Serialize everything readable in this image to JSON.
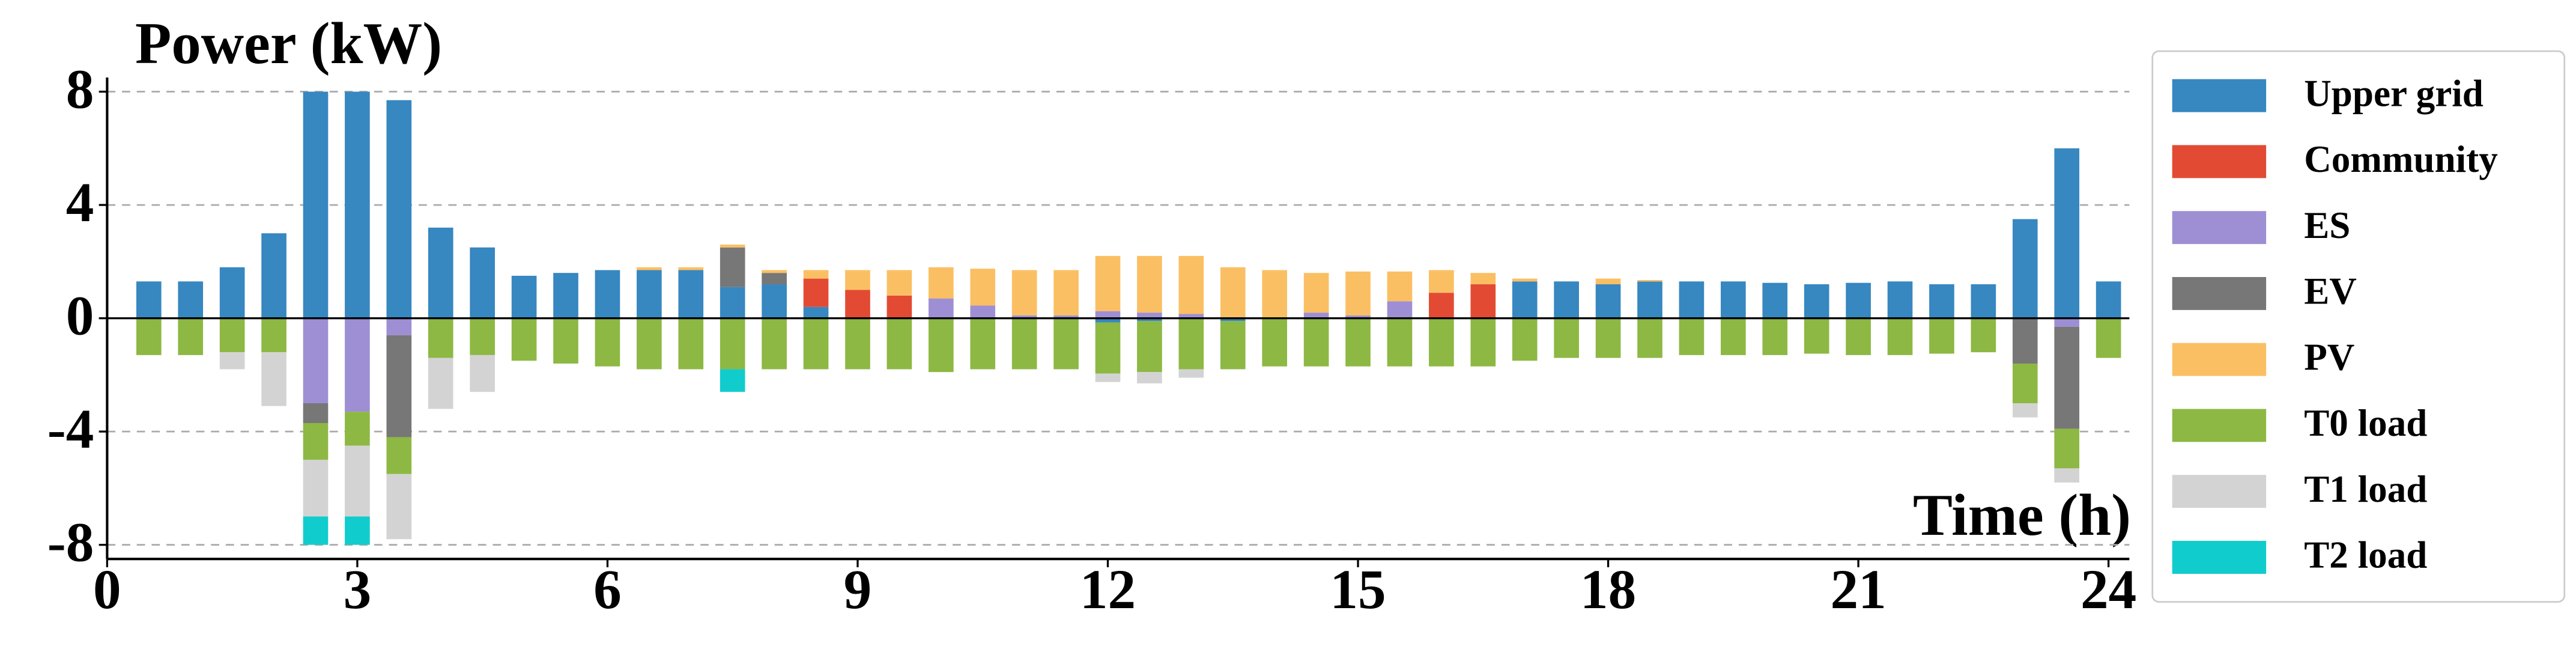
{
  "chart_data": {
    "type": "bar",
    "stacked": true,
    "title": "Power (kW)",
    "xlabel": "Time (h)",
    "x": [
      0.5,
      1.0,
      1.5,
      2.0,
      2.5,
      3.0,
      3.5,
      4.0,
      4.5,
      5.0,
      5.5,
      6.0,
      6.5,
      7.0,
      7.5,
      8.0,
      8.5,
      9.0,
      9.5,
      10.0,
      10.5,
      11.0,
      11.5,
      12.0,
      12.5,
      13.0,
      13.5,
      14.0,
      14.5,
      15.0,
      15.5,
      16.0,
      16.5,
      17.0,
      17.5,
      18.0,
      18.5,
      19.0,
      19.5,
      20.0,
      20.5,
      21.0,
      21.5,
      22.0,
      22.5,
      23.0,
      23.5,
      24.0
    ],
    "xlim": [
      0,
      24.25
    ],
    "xticks": [
      0,
      3,
      6,
      9,
      12,
      15,
      18,
      21,
      24
    ],
    "ylim": [
      -8.5,
      8.5
    ],
    "yticks": [
      8,
      4,
      0,
      -4,
      -8
    ],
    "grid": true,
    "legend": "outside-right",
    "series": [
      {
        "name": "Upper grid",
        "color": "#3787c0",
        "values": [
          1.3,
          1.3,
          1.8,
          3.0,
          8.0,
          8.0,
          7.7,
          3.2,
          2.5,
          1.5,
          1.6,
          1.7,
          1.7,
          1.7,
          1.1,
          1.2,
          0.4,
          0,
          0,
          0,
          0,
          0,
          0,
          -0.15,
          -0.1,
          0,
          -0.1,
          0,
          0,
          0,
          0,
          0,
          0,
          1.3,
          1.3,
          1.2,
          1.3,
          1.3,
          1.3,
          1.25,
          1.2,
          1.25,
          1.3,
          1.2,
          1.2,
          3.5,
          6.0,
          1.3
        ]
      },
      {
        "name": "Community",
        "color": "#e34a33",
        "values": [
          0,
          0,
          0,
          0,
          0,
          0,
          0,
          0,
          0,
          0,
          0,
          0,
          0,
          0,
          0,
          0,
          1.0,
          1.0,
          0.8,
          0,
          0,
          0,
          0,
          0,
          0,
          0,
          0,
          0,
          0,
          0,
          0,
          0.9,
          1.2,
          0,
          0,
          0,
          0,
          0,
          0,
          0,
          0,
          0,
          0,
          0,
          0,
          0,
          0,
          0
        ]
      },
      {
        "name": "ES",
        "color": "#9e8fd4",
        "values": [
          0,
          0,
          0,
          0,
          -3.0,
          -3.3,
          -0.6,
          0,
          0,
          0,
          0,
          0,
          0,
          0,
          0,
          0,
          0,
          0,
          0,
          0.7,
          0.45,
          0.1,
          0.1,
          0.25,
          0.2,
          0.15,
          0,
          0,
          0.2,
          0.1,
          0.6,
          0,
          0,
          0,
          0,
          0,
          0,
          0,
          0,
          0,
          0,
          0,
          0,
          0,
          0,
          0,
          -0.3,
          0
        ]
      },
      {
        "name": "EV",
        "color": "#777777",
        "values": [
          0,
          0,
          0,
          0,
          -0.7,
          0,
          -3.6,
          0,
          0,
          0,
          0,
          0,
          0,
          0,
          1.4,
          0.4,
          0,
          0,
          0,
          0,
          0,
          0,
          0,
          0,
          0,
          0,
          0,
          0,
          0,
          0,
          0,
          0,
          0,
          0,
          0,
          0,
          0,
          0,
          0,
          0,
          0,
          0,
          0,
          0,
          0,
          -1.6,
          -3.6,
          0
        ]
      },
      {
        "name": "PV",
        "color": "#fbbf63",
        "values": [
          0,
          0,
          0,
          0,
          0,
          0,
          0,
          0,
          0,
          0,
          0,
          0,
          0.1,
          0.1,
          0.1,
          0.1,
          0.3,
          0.7,
          0.9,
          1.1,
          1.3,
          1.6,
          1.6,
          1.95,
          2.0,
          2.05,
          1.8,
          1.7,
          1.4,
          1.55,
          1.05,
          0.8,
          0.4,
          0.1,
          0,
          0.2,
          0.05,
          0,
          0,
          0,
          0,
          0,
          0,
          0,
          0,
          0,
          0,
          0
        ]
      },
      {
        "name": "T0 load",
        "color": "#8db843",
        "values": [
          -1.3,
          -1.3,
          -1.2,
          -1.2,
          -1.3,
          -1.2,
          -1.3,
          -1.4,
          -1.3,
          -1.5,
          -1.6,
          -1.7,
          -1.8,
          -1.8,
          -1.8,
          -1.8,
          -1.8,
          -1.8,
          -1.8,
          -1.9,
          -1.8,
          -1.8,
          -1.8,
          -1.8,
          -1.8,
          -1.8,
          -1.7,
          -1.7,
          -1.7,
          -1.7,
          -1.7,
          -1.7,
          -1.7,
          -1.5,
          -1.4,
          -1.4,
          -1.4,
          -1.3,
          -1.3,
          -1.3,
          -1.25,
          -1.3,
          -1.3,
          -1.25,
          -1.2,
          -1.4,
          -1.4,
          -1.4
        ]
      },
      {
        "name": "T1 load",
        "color": "#d3d3d3",
        "values": [
          0,
          0,
          -0.6,
          -1.9,
          -2.0,
          -2.5,
          -2.3,
          -1.8,
          -1.3,
          0,
          0,
          0,
          0,
          0,
          0,
          0,
          0,
          0,
          0,
          0,
          0,
          0,
          0,
          -0.3,
          -0.4,
          -0.3,
          0,
          0,
          0,
          0,
          0,
          0,
          0,
          0,
          0,
          0,
          0,
          0,
          0,
          0,
          0,
          0,
          0,
          0,
          0,
          -0.5,
          -0.5,
          0
        ]
      },
      {
        "name": "T2 load",
        "color": "#11cccc",
        "values": [
          0,
          0,
          0,
          0,
          -1.0,
          -1.0,
          0,
          0,
          0,
          0,
          0,
          0,
          0,
          0,
          -0.8,
          0,
          0,
          0,
          0,
          0,
          0,
          0,
          0,
          0,
          0,
          0,
          0,
          0,
          0,
          0,
          0,
          0,
          0,
          0,
          0,
          0,
          0,
          0,
          0,
          0,
          0,
          0,
          0,
          0,
          0,
          0,
          0,
          0
        ]
      }
    ]
  }
}
